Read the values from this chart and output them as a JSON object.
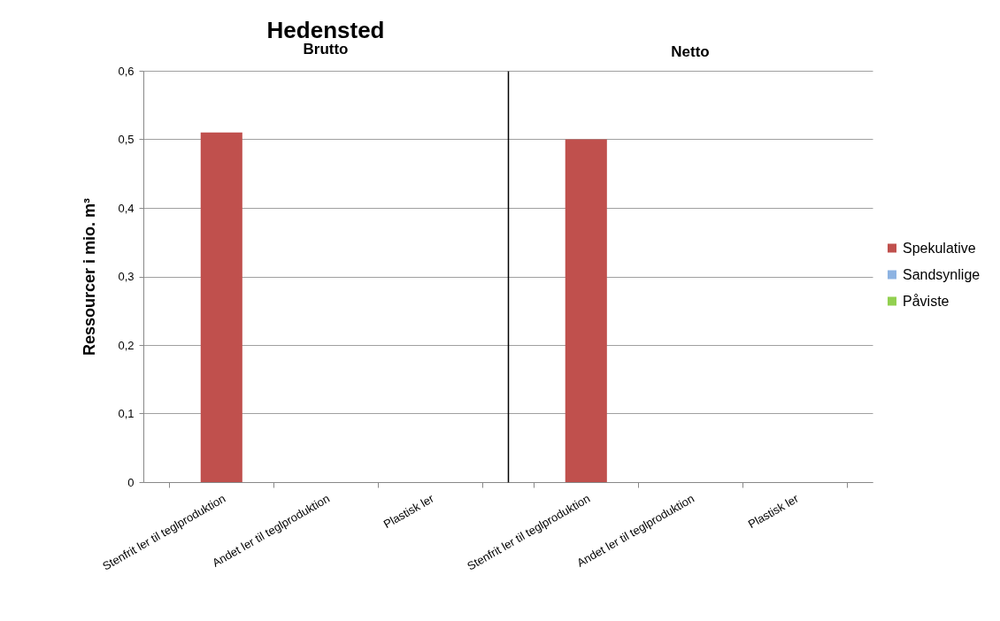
{
  "chart_data": [
    {
      "type": "bar",
      "title": "Hedensted",
      "subtitle": "Brutto",
      "ylabel": "Ressourcer i mio. m³",
      "stacked": true,
      "grid": "y",
      "categories": [
        "Stenfrit ler til teglproduktion",
        "Andet ler til teglproduktion",
        "Plastisk ler"
      ],
      "series": [
        {
          "color": "#c0504d",
          "values": [
            0.51,
            0,
            0
          ]
        },
        {
          "color": "#8db3e2",
          "values": [
            0,
            0,
            0
          ]
        },
        {
          "color": "#92d050",
          "values": [
            0,
            0,
            0
          ]
        }
      ],
      "ylim": [
        0,
        0.6
      ],
      "yticks": [
        0,
        {
          "value": 0.1,
          "label": "0,1"
        },
        {
          "value": 0.2,
          "label": "0,2"
        },
        {
          "value": 0.3,
          "label": "0,3"
        },
        {
          "value": 0.4,
          "label": "0,4"
        },
        {
          "value": 0.5,
          "label": "0,5"
        },
        {
          "value": 0.6,
          "label": "0,6"
        }
      ]
    },
    {
      "type": "bar",
      "subtitle": "Netto",
      "stacked": true,
      "legend": "right",
      "grid": "y",
      "tick_labels": "x",
      "categories": [
        "Stenfrit ler til teglproduktion",
        "Andet ler til teglproduktion",
        "Plastisk ler"
      ],
      "series": [
        {
          "name": "Spekulative",
          "color": "#c0504d",
          "values": [
            0.5,
            0,
            0
          ]
        },
        {
          "name": "Sandsynlige",
          "color": "#8db3e2",
          "values": [
            0,
            0,
            0
          ]
        },
        {
          "name": "Påviste",
          "color": "#92d050",
          "values": [
            0,
            0,
            0
          ]
        }
      ],
      "ylim": [
        0,
        0.6
      ],
      "yticks": [
        0,
        0.1,
        0.2,
        0.3,
        0.4,
        0.5,
        0.6
      ]
    }
  ]
}
